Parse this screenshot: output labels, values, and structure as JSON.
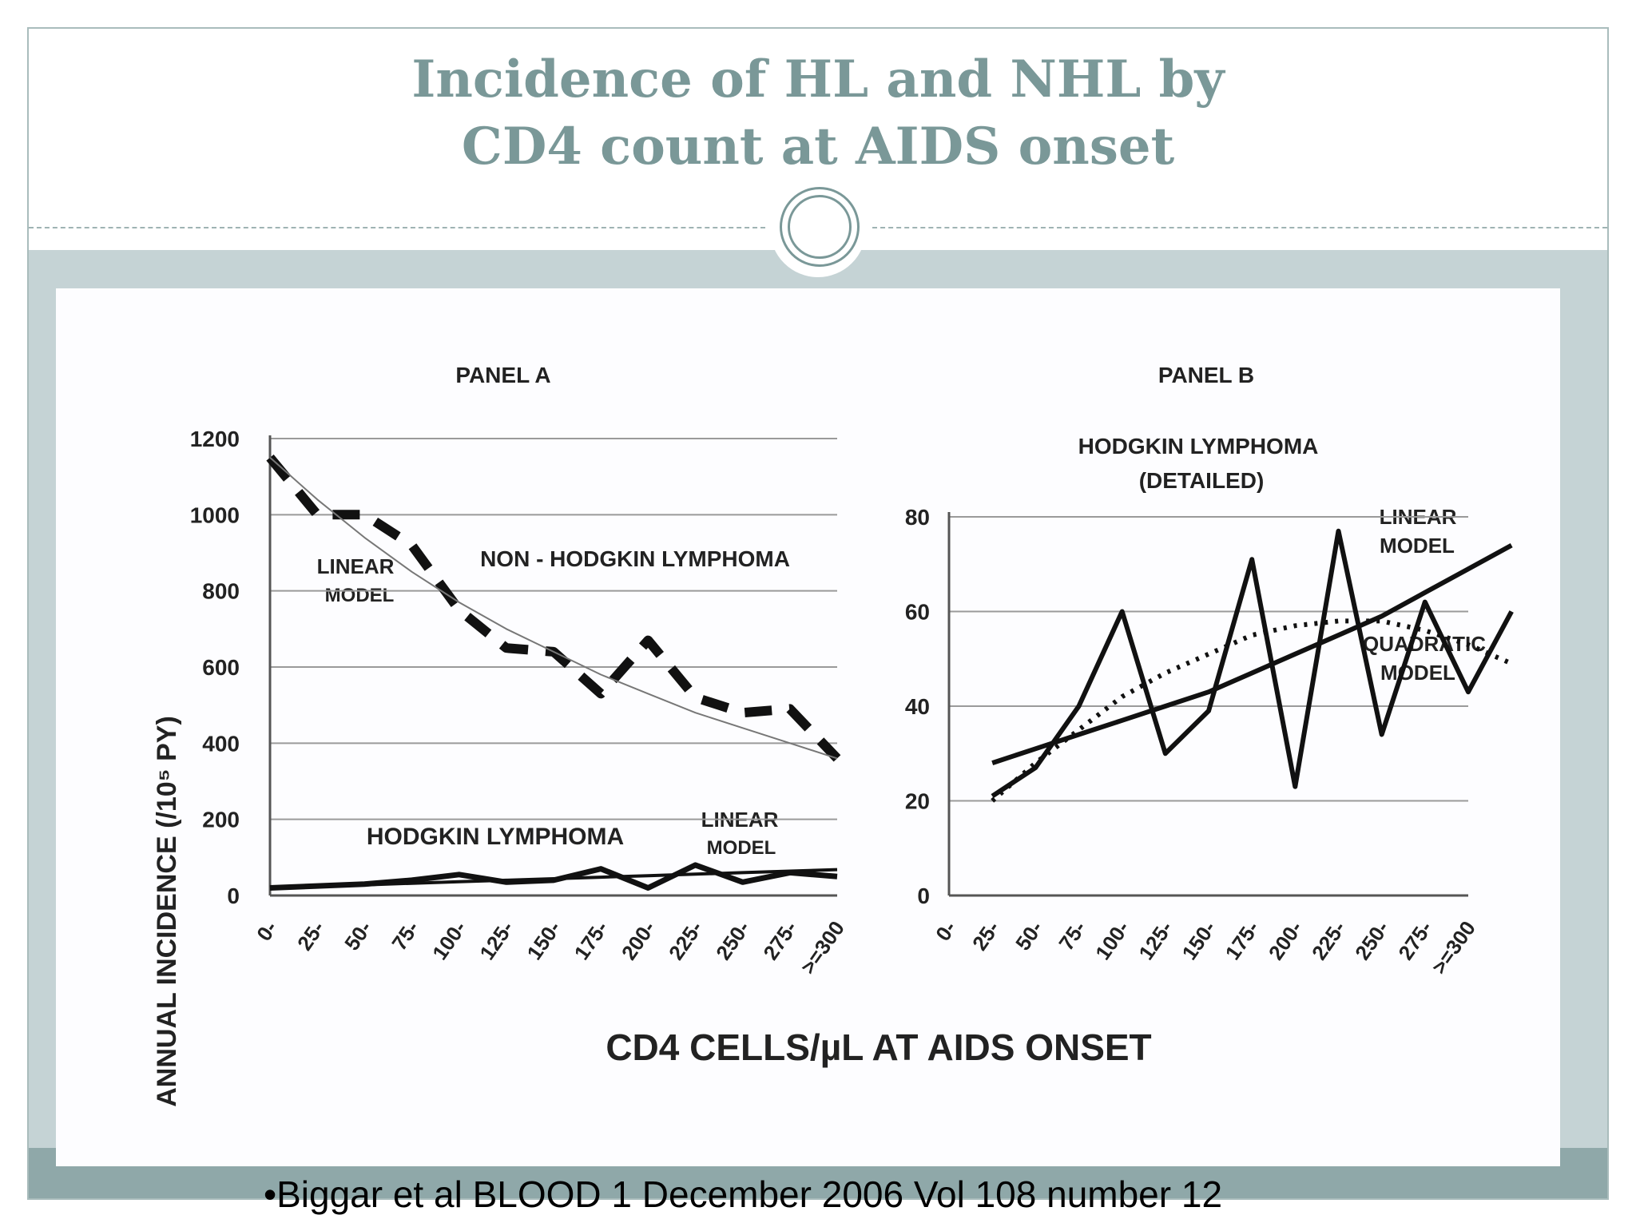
{
  "slide": {
    "title_line1": "Incidence of HL and NHL by",
    "title_line2": "CD4 count at AIDS onset",
    "citation": "•Biggar et al BLOOD 1 December 2006 Vol 108 number 12"
  },
  "figure": {
    "shared_xlabel": "CD4 CELLS/µL  AT AIDS ONSET"
  },
  "chart_data": [
    {
      "type": "line",
      "title": "PANEL A",
      "ylabel": "ANNUAL INCIDENCE (/10⁵ PY)",
      "ylim": [
        0,
        1200
      ],
      "yticks": [
        0,
        200,
        400,
        600,
        800,
        1000,
        1200
      ],
      "categories": [
        "0-",
        "25-",
        "50-",
        "75-",
        "100-",
        "125-",
        "150-",
        "175-",
        "200-",
        "225-",
        "250-",
        "275-",
        ">=300"
      ],
      "grid": true,
      "series": [
        {
          "name": "NON - HODGKIN LYMPHOMA",
          "values": [
            1150,
            1000,
            1000,
            920,
            750,
            650,
            640,
            530,
            670,
            520,
            480,
            490,
            360
          ]
        },
        {
          "name": "LINEAR MODEL",
          "values": [
            1150,
            1040,
            940,
            850,
            770,
            700,
            640,
            580,
            530,
            480,
            440,
            400,
            360
          ]
        },
        {
          "name": "HODGKIN LYMPHOMA",
          "values": [
            20,
            25,
            30,
            40,
            55,
            35,
            40,
            70,
            20,
            80,
            35,
            60,
            50
          ]
        },
        {
          "name": "LINEAR MODEL",
          "values": [
            20,
            24,
            28,
            32,
            36,
            40,
            44,
            48,
            52,
            56,
            60,
            64,
            68
          ]
        }
      ],
      "annotations": [
        "LINEAR",
        "MODEL",
        "NON - HODGKIN LYMPHOMA",
        "HODGKIN LYMPHOMA",
        "LINEAR",
        "MODEL"
      ]
    },
    {
      "type": "line",
      "title": "PANEL B",
      "subtitle_line1": "HODGKIN LYMPHOMA",
      "subtitle_line2": "(DETAILED)",
      "ylim": [
        0,
        80
      ],
      "yticks": [
        0,
        20,
        40,
        60,
        80
      ],
      "categories": [
        "0-",
        "25-",
        "50-",
        "75-",
        "100-",
        "125-",
        "150-",
        "175-",
        "200-",
        "225-",
        "250-",
        "275-",
        ">=300"
      ],
      "grid": true,
      "series": [
        {
          "name": "HODGKIN LYMPHOMA",
          "x_start_index": 1,
          "values": [
            21,
            27,
            40,
            60,
            30,
            39,
            71,
            23,
            77,
            34,
            62,
            43,
            60
          ]
        },
        {
          "name": "LINEAR MODEL",
          "x_start_index": 1,
          "values": [
            28,
            31,
            34,
            37,
            40,
            43,
            47,
            51,
            55,
            59,
            64,
            69,
            74
          ]
        },
        {
          "name": "QUADRATIC MODEL",
          "x_start_index": 1,
          "values": [
            20,
            28,
            35,
            42,
            47,
            51,
            55,
            57,
            58,
            58,
            56,
            53,
            49
          ]
        }
      ],
      "annotations": [
        "LINEAR",
        "MODEL",
        "QUADRATIC",
        "MODEL"
      ]
    }
  ]
}
